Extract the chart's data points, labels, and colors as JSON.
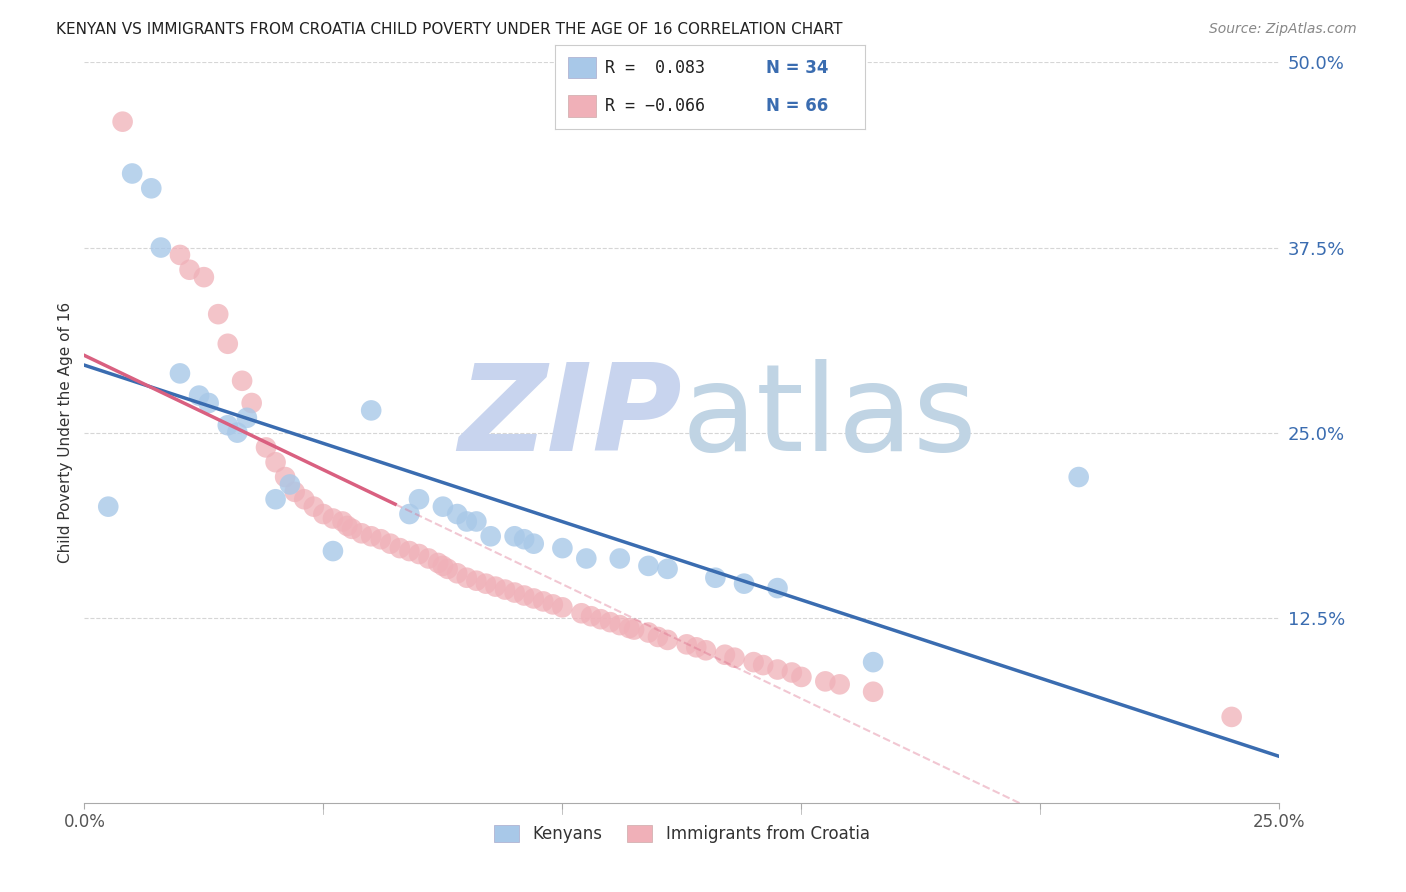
{
  "title": "KENYAN VS IMMIGRANTS FROM CROATIA CHILD POVERTY UNDER THE AGE OF 16 CORRELATION CHART",
  "source": "Source: ZipAtlas.com",
  "ylabel": "Child Poverty Under the Age of 16",
  "xlim": [
    0.0,
    0.25
  ],
  "ylim": [
    0.0,
    0.5
  ],
  "background_color": "#ffffff",
  "grid_color": "#cccccc",
  "kenyan_color": "#a8c8e8",
  "croatia_color": "#f0b0b8",
  "kenyan_line_color": "#3a6cb0",
  "croatia_line_color": "#d96080",
  "watermark_zip_color": "#c8d8f0",
  "watermark_atlas_color": "#c8d8e8",
  "legend_label_kenyan": "Kenyans",
  "legend_label_croatia": "Immigrants from Croatia",
  "kenyan_x": [
    0.005,
    0.01,
    0.014,
    0.016,
    0.02,
    0.024,
    0.026,
    0.03,
    0.032,
    0.034,
    0.04,
    0.043,
    0.052,
    0.06,
    0.068,
    0.07,
    0.075,
    0.078,
    0.08,
    0.082,
    0.085,
    0.09,
    0.092,
    0.094,
    0.1,
    0.105,
    0.112,
    0.118,
    0.122,
    0.132,
    0.138,
    0.145,
    0.165,
    0.208
  ],
  "kenyan_y": [
    0.2,
    0.425,
    0.415,
    0.375,
    0.29,
    0.275,
    0.27,
    0.255,
    0.25,
    0.26,
    0.205,
    0.215,
    0.17,
    0.265,
    0.195,
    0.205,
    0.2,
    0.195,
    0.19,
    0.19,
    0.18,
    0.18,
    0.178,
    0.175,
    0.172,
    0.165,
    0.165,
    0.16,
    0.158,
    0.152,
    0.148,
    0.145,
    0.095,
    0.22
  ],
  "croatia_x": [
    0.008,
    0.02,
    0.022,
    0.025,
    0.028,
    0.03,
    0.033,
    0.035,
    0.038,
    0.04,
    0.042,
    0.044,
    0.046,
    0.048,
    0.05,
    0.052,
    0.054,
    0.055,
    0.056,
    0.058,
    0.06,
    0.062,
    0.064,
    0.066,
    0.068,
    0.07,
    0.072,
    0.074,
    0.075,
    0.076,
    0.078,
    0.08,
    0.082,
    0.084,
    0.086,
    0.088,
    0.09,
    0.092,
    0.094,
    0.096,
    0.098,
    0.1,
    0.104,
    0.106,
    0.108,
    0.11,
    0.112,
    0.114,
    0.115,
    0.118,
    0.12,
    0.122,
    0.126,
    0.128,
    0.13,
    0.134,
    0.136,
    0.14,
    0.142,
    0.145,
    0.148,
    0.15,
    0.155,
    0.158,
    0.165,
    0.24
  ],
  "croatia_y": [
    0.46,
    0.37,
    0.36,
    0.355,
    0.33,
    0.31,
    0.285,
    0.27,
    0.24,
    0.23,
    0.22,
    0.21,
    0.205,
    0.2,
    0.195,
    0.192,
    0.19,
    0.187,
    0.185,
    0.182,
    0.18,
    0.178,
    0.175,
    0.172,
    0.17,
    0.168,
    0.165,
    0.162,
    0.16,
    0.158,
    0.155,
    0.152,
    0.15,
    0.148,
    0.146,
    0.144,
    0.142,
    0.14,
    0.138,
    0.136,
    0.134,
    0.132,
    0.128,
    0.126,
    0.124,
    0.122,
    0.12,
    0.118,
    0.117,
    0.115,
    0.112,
    0.11,
    0.107,
    0.105,
    0.103,
    0.1,
    0.098,
    0.095,
    0.093,
    0.09,
    0.088,
    0.085,
    0.082,
    0.08,
    0.075,
    0.058
  ]
}
